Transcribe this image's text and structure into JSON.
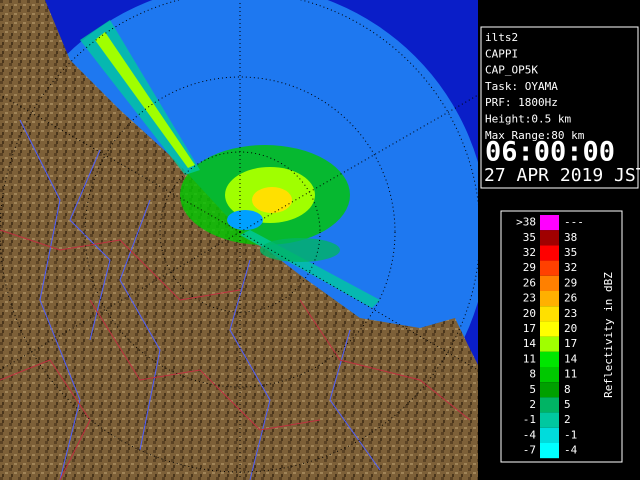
{
  "info": {
    "lines": [
      "ilts2",
      "CAPPI",
      "CAP_OP5K",
      "Task: OYAMA",
      "PRF: 1800Hz",
      "Height:0.5 km",
      "Max Range:80 km"
    ],
    "time": "06:00:00",
    "date": "27 APR 2019 JST"
  },
  "legend": {
    "title": "Reflectivity in dBZ",
    "rows": [
      {
        "low": ">38",
        "high": "---",
        "color": "#ff00ff"
      },
      {
        "low": "35",
        "high": "38",
        "color": "#a00000"
      },
      {
        "low": "32",
        "high": "35",
        "color": "#ff0000"
      },
      {
        "low": "29",
        "high": "32",
        "color": "#ff4000"
      },
      {
        "low": "26",
        "high": "29",
        "color": "#ff8000"
      },
      {
        "low": "23",
        "high": "26",
        "color": "#ffb000"
      },
      {
        "low": "20",
        "high": "23",
        "color": "#ffe000"
      },
      {
        "low": "17",
        "high": "20",
        "color": "#ffff00"
      },
      {
        "low": "14",
        "high": "17",
        "color": "#a0ff00"
      },
      {
        "low": "11",
        "high": "14",
        "color": "#00e600"
      },
      {
        "low": "8",
        "high": "11",
        "color": "#00c800"
      },
      {
        "low": "5",
        "high": "8",
        "color": "#00a000"
      },
      {
        "low": "2",
        "high": "5",
        "color": "#00b464"
      },
      {
        "low": "-1",
        "high": "2",
        "color": "#00c8a0"
      },
      {
        "low": "-4",
        "high": "-1",
        "color": "#00dcdc"
      },
      {
        "low": "-7",
        "high": "-4",
        "color": "#00ffff"
      }
    ]
  }
}
